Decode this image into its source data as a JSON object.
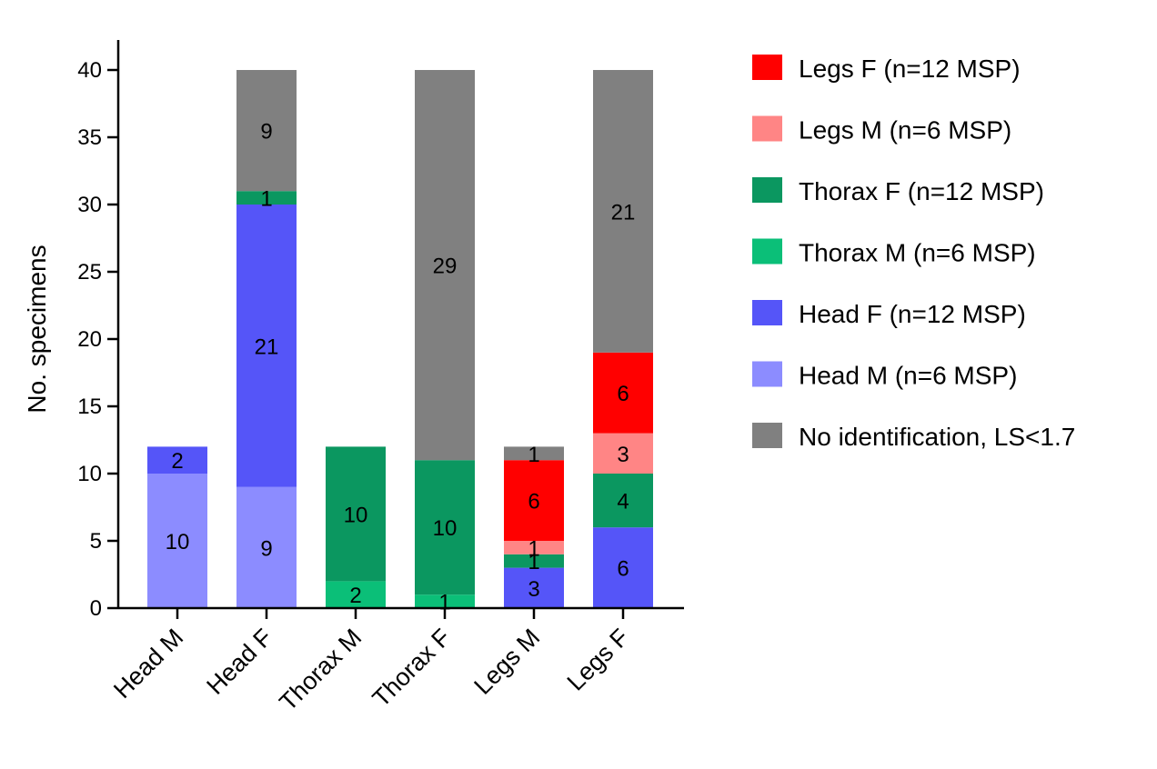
{
  "chart_data": {
    "type": "bar",
    "stacked": true,
    "title": "",
    "xlabel": "",
    "ylabel": "No. specimens",
    "ylim": [
      0,
      42
    ],
    "yticks": [
      0,
      5,
      10,
      15,
      20,
      25,
      30,
      35,
      40
    ],
    "categories": [
      "Head M",
      "Head F",
      "Thorax M",
      "Thorax F",
      "Legs M",
      "Legs F"
    ],
    "grid": false,
    "legend_position": "right",
    "series": [
      {
        "key": "head_m",
        "name": "Head M (n=6 MSP)",
        "color": "#8c8cff",
        "values": [
          10,
          9,
          0,
          0,
          0,
          0
        ]
      },
      {
        "key": "head_f",
        "name": "Head F (n=12 MSP)",
        "color": "#5555f8",
        "values": [
          2,
          21,
          0,
          0,
          3,
          6
        ]
      },
      {
        "key": "thorax_m",
        "name": "Thorax M (n=6 MSP)",
        "color": "#0bbf78",
        "values": [
          0,
          0,
          2,
          1,
          0,
          0
        ]
      },
      {
        "key": "thorax_f",
        "name": "Thorax F (n=12 MSP)",
        "color": "#0b9760",
        "values": [
          0,
          1,
          10,
          10,
          1,
          4
        ]
      },
      {
        "key": "legs_m",
        "name": "Legs M (n=6 MSP)",
        "color": "#ff8585",
        "values": [
          0,
          0,
          0,
          0,
          1,
          3
        ]
      },
      {
        "key": "legs_f",
        "name": "Legs F (n=12 MSP)",
        "color": "#ff0000",
        "values": [
          0,
          0,
          0,
          0,
          6,
          6
        ]
      },
      {
        "key": "no_id",
        "name": "No identification, LS<1.7",
        "color": "#808080",
        "values": [
          0,
          9,
          0,
          29,
          1,
          21
        ]
      }
    ],
    "legend_order": [
      "legs_f",
      "legs_m",
      "thorax_f",
      "thorax_m",
      "head_f",
      "head_m",
      "no_id"
    ]
  }
}
